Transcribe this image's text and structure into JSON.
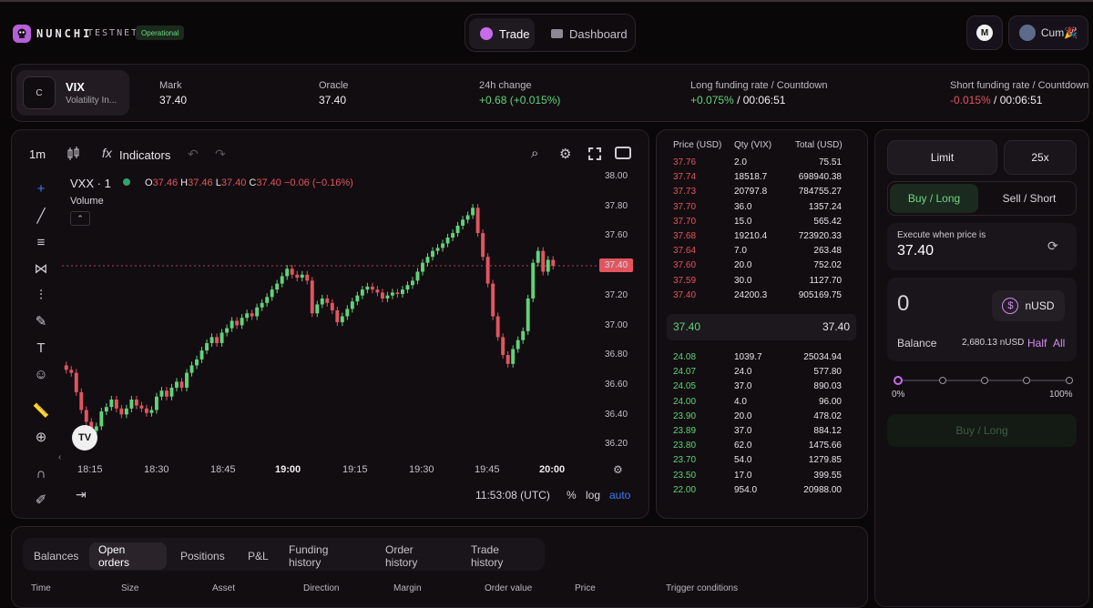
{
  "header": {
    "brand": "NUNCHI",
    "network": "TESTNET",
    "status_badge": "Operational",
    "tabs": [
      {
        "label": "Trade",
        "active": true
      },
      {
        "label": "Dashboard",
        "active": false
      }
    ],
    "wallet_badge": "M",
    "user_name": "Cum🎉"
  },
  "market": {
    "icon_letter": "C",
    "symbol": "VIX",
    "name": "Volatility In...",
    "mark_label": "Mark",
    "mark_value": "37.40",
    "oracle_label": "Oracle",
    "oracle_value": "37.40",
    "change_label": "24h change",
    "change_value": "+0.68 (+0.015%)",
    "long_funding_label": "Long funding rate / Countdown",
    "long_funding_rate": "+0.075%",
    "long_funding_countdown": "/ 00:06:51",
    "short_funding_label": "Short funding rate / Countdown",
    "short_funding_rate": "-0.015%",
    "short_funding_countdown": "/ 00:06:51"
  },
  "chart_toolbar": {
    "interval": "1m",
    "indicators_label": "Indicators"
  },
  "chart_legend": {
    "symbol": "VXX · 1",
    "o_label": "O",
    "o": "37.46",
    "h_label": "H",
    "h": "37.46",
    "l_label": "L",
    "l": "37.40",
    "c_label": "C",
    "c": "37.40",
    "change": "−0.06 (−0.16%)",
    "volume_label": "Volume"
  },
  "chart_footer": {
    "time": "11:53:08 (UTC)",
    "percent": "%",
    "log": "log",
    "auto": "auto"
  },
  "chart_data": {
    "type": "candlestick",
    "y_ticks": [
      "38.00",
      "37.80",
      "37.60",
      "37.40",
      "37.20",
      "37.00",
      "36.80",
      "36.60",
      "36.40",
      "36.20"
    ],
    "x_ticks": [
      "18:15",
      "18:30",
      "18:45",
      "19:00",
      "19:15",
      "19:30",
      "19:45",
      "20:00"
    ],
    "ylim": [
      36.2,
      38.0
    ],
    "last_price": "37.40",
    "closes": [
      36.7,
      36.68,
      36.55,
      36.43,
      36.35,
      36.29,
      36.32,
      36.42,
      36.45,
      36.5,
      36.44,
      36.4,
      36.44,
      36.5,
      36.46,
      36.44,
      36.41,
      36.43,
      36.52,
      36.56,
      36.52,
      36.58,
      36.62,
      36.58,
      36.68,
      36.73,
      36.77,
      36.83,
      36.88,
      36.92,
      36.88,
      36.95,
      36.98,
      37.03,
      37.0,
      37.05,
      37.08,
      37.06,
      37.12,
      37.15,
      37.19,
      37.24,
      37.28,
      37.33,
      37.38,
      37.34,
      37.32,
      37.34,
      37.3,
      37.08,
      37.14,
      37.18,
      37.15,
      37.1,
      37.02,
      37.06,
      37.11,
      37.16,
      37.2,
      37.24,
      37.26,
      37.24,
      37.22,
      37.18,
      37.2,
      37.22,
      37.21,
      37.24,
      37.27,
      37.3,
      37.36,
      37.42,
      37.46,
      37.5,
      37.52,
      37.55,
      37.59,
      37.62,
      37.67,
      37.71,
      37.74,
      37.79,
      37.62,
      37.46,
      37.28,
      37.06,
      36.92,
      36.8,
      36.74,
      36.84,
      36.9,
      36.96,
      37.18,
      37.42,
      37.5,
      37.36,
      37.44,
      37.4
    ]
  },
  "orderbook": {
    "headers": [
      "Price (USD)",
      "Qty (VIX)",
      "Total (USD)"
    ],
    "asks": [
      [
        "37.76",
        "2.0",
        "75.51"
      ],
      [
        "37.74",
        "18518.7",
        "698940.38"
      ],
      [
        "37.73",
        "20797.8",
        "784755.27"
      ],
      [
        "37.70",
        "36.0",
        "1357.24"
      ],
      [
        "37.70",
        "15.0",
        "565.42"
      ],
      [
        "37.68",
        "19210.4",
        "723920.33"
      ],
      [
        "37.64",
        "7.0",
        "263.48"
      ],
      [
        "37.60",
        "20.0",
        "752.02"
      ],
      [
        "37.59",
        "30.0",
        "1127.70"
      ],
      [
        "37.40",
        "24200.3",
        "905169.75"
      ]
    ],
    "mid_left": "37.40",
    "mid_right": "37.40",
    "bids": [
      [
        "24.08",
        "1039.7",
        "25034.94"
      ],
      [
        "24.07",
        "24.0",
        "577.80"
      ],
      [
        "24.05",
        "37.0",
        "890.03"
      ],
      [
        "24.00",
        "4.0",
        "96.00"
      ],
      [
        "23.90",
        "20.0",
        "478.02"
      ],
      [
        "23.89",
        "37.0",
        "884.12"
      ],
      [
        "23.80",
        "62.0",
        "1475.66"
      ],
      [
        "23.70",
        "54.0",
        "1279.85"
      ],
      [
        "23.50",
        "17.0",
        "399.55"
      ],
      [
        "22.00",
        "954.0",
        "20988.00"
      ]
    ]
  },
  "order_form": {
    "order_type": "Limit",
    "leverage": "25x",
    "buy_tab": "Buy / Long",
    "sell_tab": "Sell / Short",
    "execute_label": "Execute when price is",
    "execute_price": "37.40",
    "amount": "0",
    "token": "nUSD",
    "balance_label": "Balance",
    "balance_value": "2,680.13 nUSD",
    "half": "Half",
    "all": "All",
    "slider_min": "0%",
    "slider_max": "100%",
    "slider_value": 0,
    "submit": "Buy / Long"
  },
  "bottom": {
    "tabs": [
      "Balances",
      "Open orders",
      "Positions",
      "P&L",
      "Funding history",
      "Order history",
      "Trade history"
    ],
    "active_tab": "Open orders",
    "columns": [
      "Time",
      "Size",
      "Asset",
      "Direction",
      "Margin",
      "Order value",
      "Price",
      "Trigger conditions"
    ]
  },
  "colors": {
    "up": "#5fd47a",
    "down": "#e2555f",
    "accent": "#b660d8",
    "bg": "#0a0709"
  }
}
